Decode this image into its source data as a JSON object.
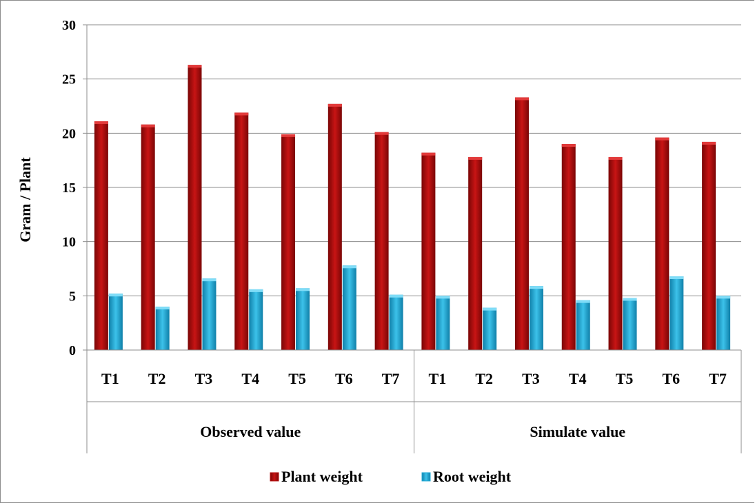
{
  "chart_data": {
    "type": "bar",
    "title": "",
    "ylabel": "Gram / Plant",
    "ylim": [
      0,
      30
    ],
    "yticks": [
      0,
      5,
      10,
      15,
      20,
      25,
      30
    ],
    "grid": true,
    "legend_position": "bottom",
    "groups": [
      {
        "label": "Observed value",
        "categories": [
          "T1",
          "T2",
          "T3",
          "T4",
          "T5",
          "T6",
          "T7"
        ]
      },
      {
        "label": "Simulate value",
        "categories": [
          "T1",
          "T2",
          "T3",
          "T4",
          "T5",
          "T6",
          "T7"
        ]
      }
    ],
    "series": [
      {
        "name": "Plant weight",
        "color": "#b30d0d",
        "values": [
          21.1,
          20.8,
          26.3,
          21.9,
          19.9,
          22.7,
          20.1,
          18.2,
          17.8,
          23.3,
          19.0,
          17.8,
          19.6,
          19.2
        ]
      },
      {
        "name": "Root weight",
        "color": "#1ca8d6",
        "values": [
          5.2,
          4.0,
          6.6,
          5.6,
          5.7,
          7.8,
          5.1,
          5.0,
          3.9,
          5.9,
          4.6,
          4.8,
          6.8,
          5.0
        ]
      }
    ]
  }
}
